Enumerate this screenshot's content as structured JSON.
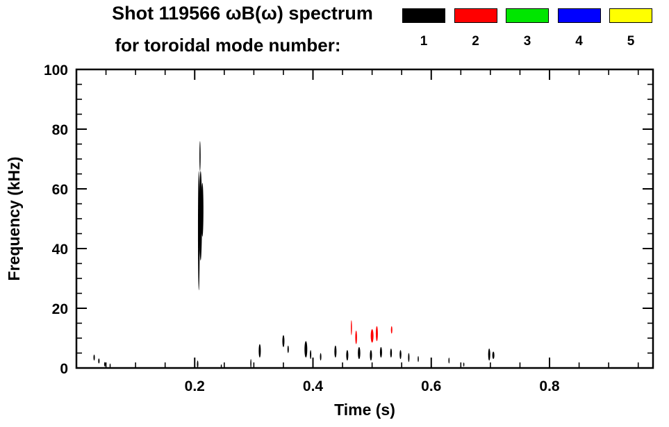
{
  "header": {
    "title": "Shot 119566 ωB(ω) spectrum",
    "subtitle": "for toroidal mode number:"
  },
  "chart_data": {
    "type": "scatter",
    "title": "Shot 119566 ωB(ω) spectrum",
    "subtitle": "for toroidal mode number:",
    "xlabel": "Time (s)",
    "ylabel": "Frequency (kHz)",
    "xlim": [
      0,
      0.975
    ],
    "ylim": [
      0,
      100
    ],
    "grid": false,
    "xticks": {
      "major": [
        0.2,
        0.4,
        0.6,
        0.8
      ],
      "labels": [
        "0.2",
        "0.4",
        "0.6",
        "0.8"
      ],
      "minor_step": 0.05
    },
    "yticks": {
      "major": [
        0,
        20,
        40,
        60,
        80,
        100
      ],
      "labels": [
        "0",
        "20",
        "40",
        "60",
        "80",
        "100"
      ],
      "minor_step": 5
    },
    "legend": {
      "position": "top-right",
      "entries": [
        {
          "label": "1",
          "color": "#000000"
        },
        {
          "label": "2",
          "color": "#ff0000"
        },
        {
          "label": "3",
          "color": "#00e600"
        },
        {
          "label": "4",
          "color": "#0000ff"
        },
        {
          "label": "5",
          "color": "#ffff00"
        }
      ]
    },
    "series": [
      {
        "name": "toroidal-mode-1",
        "color": "#000000",
        "mark_format": "[time_s, freq_low_kHz, freq_high_kHz, width_px]",
        "marks": [
          [
            0.03,
            2.5,
            4.5,
            2
          ],
          [
            0.038,
            1.5,
            3.2,
            2
          ],
          [
            0.048,
            0.5,
            2.0,
            2
          ],
          [
            0.057,
            0.0,
            1.5,
            1.5
          ],
          [
            0.205,
            0.0,
            2.5,
            2
          ],
          [
            0.207,
            26,
            66,
            2.5
          ],
          [
            0.21,
            36,
            66,
            4
          ],
          [
            0.213,
            44,
            62,
            3
          ],
          [
            0.209,
            66,
            76,
            1.5
          ],
          [
            0.245,
            0.0,
            1.2,
            1.5
          ],
          [
            0.295,
            0.0,
            3.0,
            1.5
          ],
          [
            0.31,
            3.5,
            8.0,
            3
          ],
          [
            0.35,
            7.0,
            11.0,
            3
          ],
          [
            0.358,
            5.0,
            7.5,
            2
          ],
          [
            0.388,
            3.5,
            9.0,
            4
          ],
          [
            0.396,
            3.0,
            6.0,
            2
          ],
          [
            0.413,
            2.5,
            5.0,
            2
          ],
          [
            0.438,
            3.5,
            7.5,
            3
          ],
          [
            0.458,
            2.5,
            6.0,
            3
          ],
          [
            0.478,
            3.0,
            7.0,
            3.5
          ],
          [
            0.498,
            2.5,
            6.0,
            3
          ],
          [
            0.515,
            3.5,
            7.0,
            3
          ],
          [
            0.532,
            3.5,
            6.5,
            2.5
          ],
          [
            0.548,
            3.0,
            6.0,
            2.5
          ],
          [
            0.562,
            2.0,
            5.0,
            2
          ],
          [
            0.578,
            2.0,
            4.0,
            1.5
          ],
          [
            0.63,
            1.5,
            3.5,
            1.5
          ],
          [
            0.655,
            0.5,
            1.8,
            1.2
          ],
          [
            0.698,
            2.5,
            6.5,
            3
          ],
          [
            0.705,
            3.0,
            5.5,
            3
          ]
        ]
      },
      {
        "name": "toroidal-mode-2",
        "color": "#ff0000",
        "mark_format": "[time_s, freq_low_kHz, freq_high_kHz, width_px]",
        "marks": [
          [
            0.465,
            11.0,
            16.0,
            1.5
          ],
          [
            0.473,
            8.0,
            12.5,
            2.5
          ],
          [
            0.5,
            8.5,
            13.0,
            4
          ],
          [
            0.508,
            9.0,
            14.0,
            3
          ],
          [
            0.533,
            11.5,
            14.0,
            2
          ]
        ]
      }
    ]
  }
}
